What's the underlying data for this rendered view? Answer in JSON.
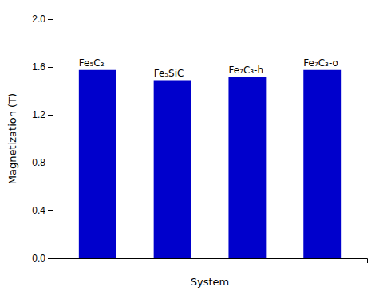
{
  "chart_data": {
    "type": "bar",
    "categories": [
      "Fe₅C₂",
      "Fe₅SiC",
      "Fe₇C₃-h",
      "Fe₇C₃-o"
    ],
    "values": [
      1.575,
      1.49,
      1.515,
      1.575
    ],
    "color": "#0000CC",
    "xlabel": "System",
    "ylabel": "Magnetization (T)",
    "ylim": [
      0.0,
      2.0
    ],
    "yticks": [
      {
        "value": 0.0,
        "label": "0.0"
      },
      0.4,
      0.8,
      1.2,
      1.6,
      {
        "value": 2.0,
        "label": "2.0"
      }
    ],
    "tick_labels": "y"
  }
}
